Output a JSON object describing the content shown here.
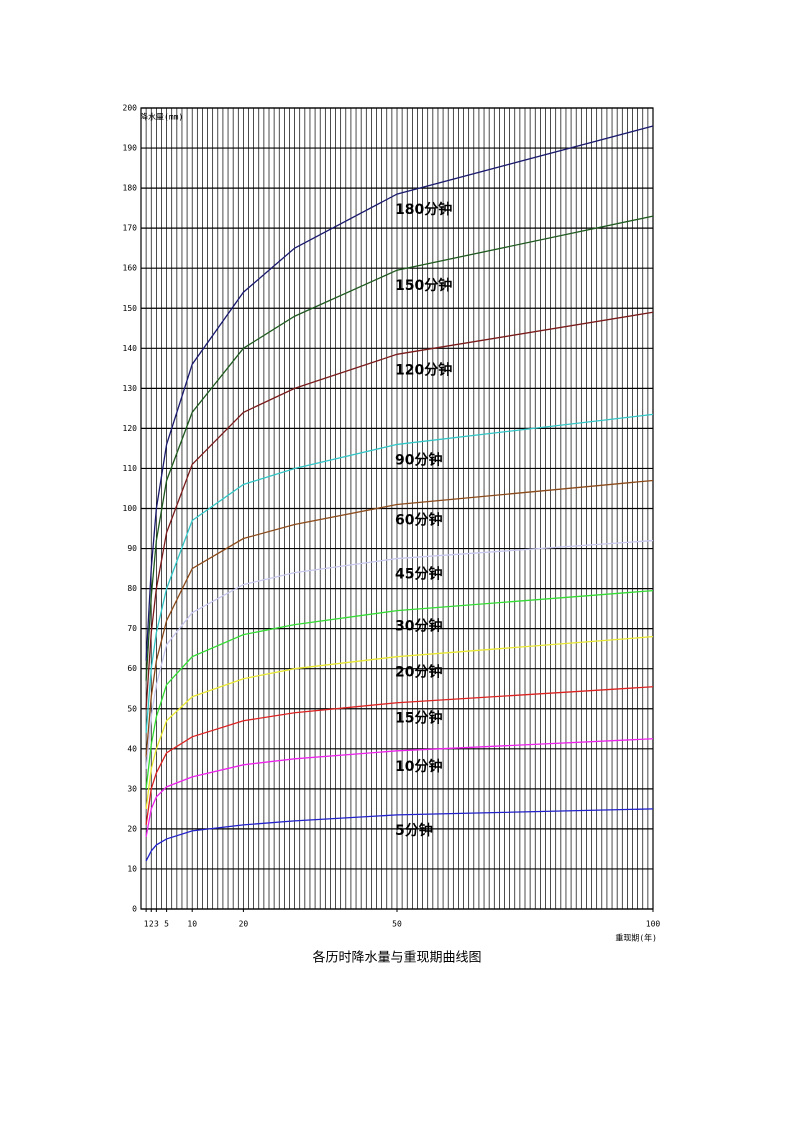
{
  "chart_data": {
    "type": "line",
    "caption": "各历时降水量与重现期曲线图",
    "y_label": "降水量(mm)",
    "x_label": "重现期(年)",
    "x": [
      1,
      2,
      3,
      5,
      10,
      20,
      30,
      50,
      100
    ],
    "xlim": [
      0,
      100
    ],
    "xticks": [
      1,
      2,
      3,
      5,
      10,
      20,
      50,
      100
    ],
    "ylim": [
      0,
      200
    ],
    "yticks": [
      0,
      10,
      20,
      30,
      40,
      50,
      60,
      70,
      80,
      90,
      100,
      110,
      120,
      130,
      140,
      150,
      160,
      170,
      180,
      190,
      200
    ],
    "grid": true,
    "series": [
      {
        "name": "180分钟",
        "color": "#1a1a6e",
        "values": [
          62,
          85,
          100,
          116,
          136,
          154,
          165,
          178.5,
          195.5
        ]
      },
      {
        "name": "150分钟",
        "color": "#1f5a1f",
        "values": [
          57,
          78,
          92,
          107,
          124,
          140,
          148,
          159.5,
          173
        ]
      },
      {
        "name": "120分钟",
        "color": "#7a1a1a",
        "values": [
          50,
          69,
          80,
          94,
          111,
          124,
          130,
          138.5,
          149
        ]
      },
      {
        "name": "90分钟",
        "color": "#33c6c6",
        "values": [
          44,
          60,
          69,
          80,
          97,
          106,
          110,
          116,
          123.5
        ]
      },
      {
        "name": "60分钟",
        "color": "#8b4a1a",
        "values": [
          38,
          53,
          62,
          72,
          85,
          92.5,
          96,
          101,
          107
        ]
      },
      {
        "name": "45分钟",
        "color": "#c8c8ee",
        "values": [
          35,
          48,
          56,
          66,
          74,
          81,
          84,
          87.5,
          92
        ]
      },
      {
        "name": "30分钟",
        "color": "#33dd33",
        "values": [
          30,
          41,
          48,
          56,
          63,
          68.5,
          71,
          74.5,
          79.5
        ]
      },
      {
        "name": "20分钟",
        "color": "#e8e833",
        "values": [
          25,
          35,
          40,
          47,
          53,
          57.5,
          60,
          63,
          68
        ]
      },
      {
        "name": "15分钟",
        "color": "#dd2222",
        "values": [
          21,
          30,
          34,
          39,
          43,
          47,
          49,
          51.5,
          55.5
        ]
      },
      {
        "name": "10分钟",
        "color": "#ee22ee",
        "values": [
          18,
          25,
          28,
          30.5,
          33,
          36,
          37.5,
          39.5,
          42.5
        ]
      },
      {
        "name": "5分钟",
        "color": "#2222cc",
        "values": [
          12,
          14.5,
          16,
          17.5,
          19.5,
          21,
          22,
          23.5,
          25
        ]
      }
    ]
  }
}
